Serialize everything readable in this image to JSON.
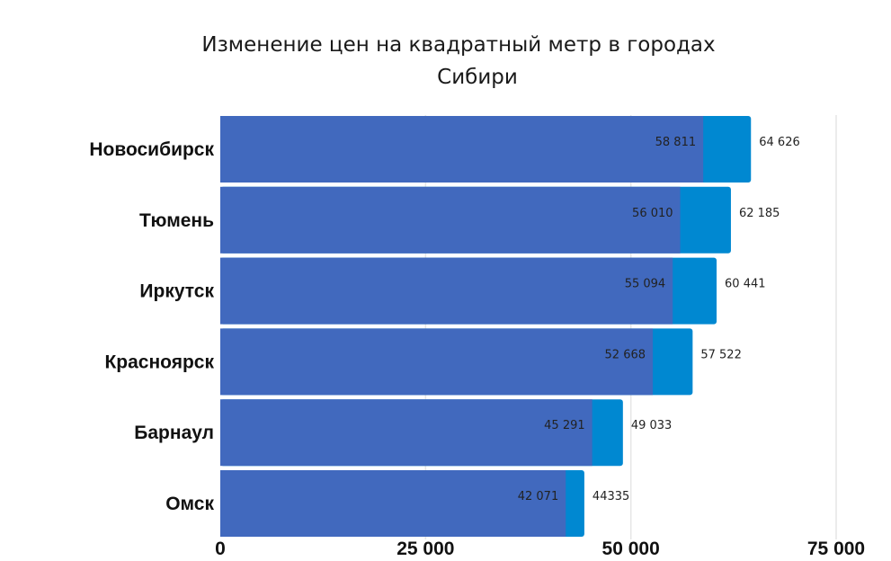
{
  "chart_data": {
    "type": "bar",
    "orientation": "horizontal",
    "title_lines": [
      "Изменение цен на квадратный метр в городах",
      "Сибири"
    ],
    "categories": [
      "Новосибирск",
      "Тюмень",
      "Иркутск",
      "Красноярск",
      "Барнаул",
      "Омск"
    ],
    "series": [
      {
        "color": "#0088d1",
        "values": [
          64626,
          62185,
          60441,
          57522,
          49033,
          44335
        ],
        "labels": [
          "64 626",
          "62 185",
          "60 441",
          "57 522",
          "49 033",
          "44335"
        ]
      },
      {
        "color": "#4169be",
        "values": [
          58811,
          56010,
          55094,
          52668,
          45291,
          42071
        ],
        "labels": [
          "58 811",
          "56 010",
          "55 094",
          "52 668",
          "45 291",
          "42 071"
        ]
      }
    ],
    "xlim": [
      0,
      75000
    ],
    "xticks": [
      0,
      25000,
      50000,
      75000
    ],
    "xtick_labels": [
      "0",
      "25 000",
      "50 000",
      "75 000"
    ],
    "grid": true,
    "gridline_color": "#e6e6e6",
    "legend": "none"
  }
}
